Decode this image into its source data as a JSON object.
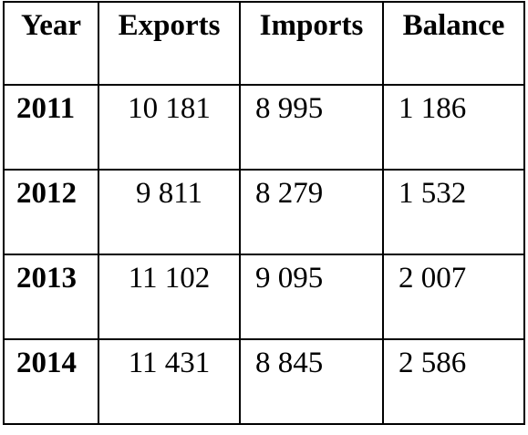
{
  "table": {
    "headers": [
      "Year",
      "Exports",
      "Imports",
      "Balance"
    ],
    "rows": [
      {
        "year": "2011",
        "exports": "10 181",
        "imports": "8 995",
        "balance": "1 186"
      },
      {
        "year": "2012",
        "exports": "9 811",
        "imports": "8 279",
        "balance": "1 532"
      },
      {
        "year": "2013",
        "exports": "11 102",
        "imports": "9 095",
        "balance": "2 007"
      },
      {
        "year": "2014",
        "exports": "11 431",
        "imports": "8 845",
        "balance": "2 586"
      }
    ]
  }
}
